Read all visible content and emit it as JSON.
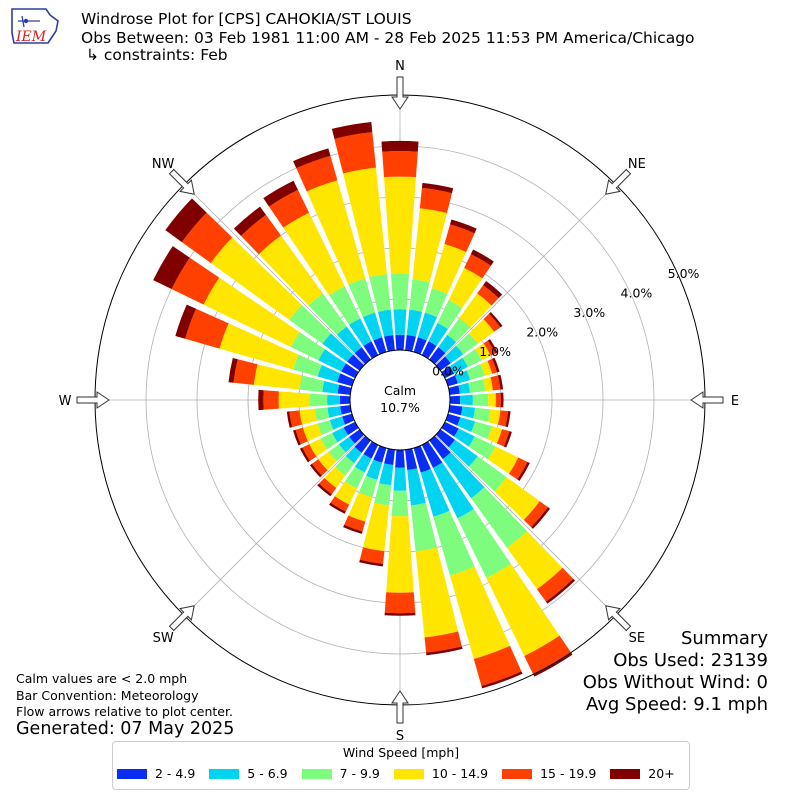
{
  "header": {
    "logo_text": "IEM",
    "title_line1": "Windrose Plot for [CPS] CAHOKIA/ST LOUIS",
    "title_line2": "Obs Between: 03 Feb 1981 11:00 AM - 28 Feb 2025 11:53 PM America/Chicago",
    "title_line3": "↳ constraints: Feb"
  },
  "notes": {
    "calm_note": "Calm values are < 2.0 mph",
    "bar_convention": "Bar Convention: Meteorology",
    "flow_note": "Flow arrows relative to plot center.",
    "generated": "Generated: 07 May 2025"
  },
  "summary": {
    "title": "Summary",
    "obs_used": "Obs Used: 23139",
    "obs_without_wind": "Obs Without Wind: 0",
    "avg_speed": "Avg Speed: 9.1 mph"
  },
  "legend": {
    "title": "Wind Speed [mph]"
  },
  "chart_data": {
    "type": "windrose",
    "calm_label": "Calm",
    "calm_value": "10.7%",
    "directions_labels": [
      "N",
      "NE",
      "E",
      "SE",
      "S",
      "SW",
      "W",
      "NW"
    ],
    "radial_ticks": [
      "0.0%",
      "1.0%",
      "2.0%",
      "3.0%",
      "4.0%",
      "5.0%"
    ],
    "radial_tick_values": [
      0,
      1,
      2,
      3,
      4,
      5
    ],
    "bins": [
      "2 - 4.9",
      "5 - 6.9",
      "7 - 9.9",
      "10 - 14.9",
      "15 - 19.9",
      "20+"
    ],
    "colors": [
      "#0a2df5",
      "#00d4f0",
      "#7dfc7d",
      "#ffe600",
      "#ff4000",
      "#800000"
    ],
    "sector_directions_deg": [
      0,
      10,
      20,
      30,
      40,
      50,
      60,
      70,
      80,
      90,
      100,
      110,
      120,
      130,
      140,
      150,
      160,
      170,
      180,
      190,
      200,
      210,
      220,
      230,
      240,
      250,
      260,
      270,
      280,
      290,
      300,
      310,
      320,
      330,
      340,
      350
    ],
    "cumulative_percent": [
      [
        0.3,
        0.8,
        1.5,
        3.4,
        3.9,
        4.1
      ],
      [
        0.3,
        0.8,
        1.4,
        2.8,
        3.2,
        3.3
      ],
      [
        0.3,
        0.8,
        1.3,
        2.2,
        2.6,
        2.7
      ],
      [
        0.3,
        0.7,
        1.2,
        1.9,
        2.2,
        2.3
      ],
      [
        0.3,
        0.6,
        1.0,
        1.6,
        1.8,
        1.9
      ],
      [
        0.25,
        0.55,
        0.9,
        1.3,
        1.45,
        1.5
      ],
      [
        0.2,
        0.5,
        0.8,
        1.0,
        1.1,
        1.15
      ],
      [
        0.2,
        0.45,
        0.75,
        0.9,
        1.0,
        1.05
      ],
      [
        0.2,
        0.4,
        0.7,
        0.85,
        1.0,
        1.05
      ],
      [
        0.2,
        0.45,
        0.75,
        0.9,
        1.0,
        1.05
      ],
      [
        0.25,
        0.5,
        0.8,
        1.0,
        1.15,
        1.2
      ],
      [
        0.25,
        0.55,
        0.9,
        1.1,
        1.25,
        1.3
      ],
      [
        0.3,
        0.65,
        1.1,
        1.6,
        1.8,
        1.85
      ],
      [
        0.35,
        0.9,
        1.6,
        2.4,
        2.6,
        2.65
      ],
      [
        0.45,
        1.4,
        2.6,
        3.6,
        3.9,
        3.95
      ],
      [
        0.5,
        1.6,
        2.9,
        4.6,
        5.0,
        5.05
      ],
      [
        0.5,
        1.4,
        2.6,
        4.3,
        4.85,
        4.9
      ],
      [
        0.4,
        1.1,
        2.0,
        3.7,
        4.0,
        4.05
      ],
      [
        0.35,
        0.8,
        1.3,
        2.8,
        3.2,
        3.25
      ],
      [
        0.3,
        0.7,
        1.1,
        2.0,
        2.25,
        2.3
      ],
      [
        0.3,
        0.65,
        1.0,
        1.5,
        1.7,
        1.75
      ],
      [
        0.3,
        0.6,
        0.95,
        1.3,
        1.45,
        1.5
      ],
      [
        0.3,
        0.55,
        0.85,
        1.15,
        1.3,
        1.35
      ],
      [
        0.25,
        0.5,
        0.75,
        1.0,
        1.15,
        1.2
      ],
      [
        0.25,
        0.5,
        0.75,
        1.0,
        1.15,
        1.2
      ],
      [
        0.2,
        0.45,
        0.7,
        1.0,
        1.15,
        1.2
      ],
      [
        0.2,
        0.45,
        0.7,
        1.0,
        1.2,
        1.25
      ],
      [
        0.2,
        0.45,
        0.8,
        1.4,
        1.7,
        1.8
      ],
      [
        0.25,
        0.55,
        1.0,
        1.9,
        2.3,
        2.4
      ],
      [
        0.3,
        0.7,
        1.2,
        2.7,
        3.4,
        3.6
      ],
      [
        0.3,
        0.8,
        1.4,
        3.3,
        4.0,
        4.4
      ],
      [
        0.3,
        0.9,
        1.7,
        3.6,
        4.3,
        4.7
      ],
      [
        0.3,
        0.8,
        1.6,
        3.0,
        3.5,
        3.7
      ],
      [
        0.3,
        0.8,
        1.5,
        3.1,
        3.6,
        3.8
      ],
      [
        0.3,
        0.8,
        1.5,
        3.5,
        4.0,
        4.15
      ],
      [
        0.3,
        0.8,
        1.5,
        3.6,
        4.3,
        4.5
      ]
    ]
  }
}
